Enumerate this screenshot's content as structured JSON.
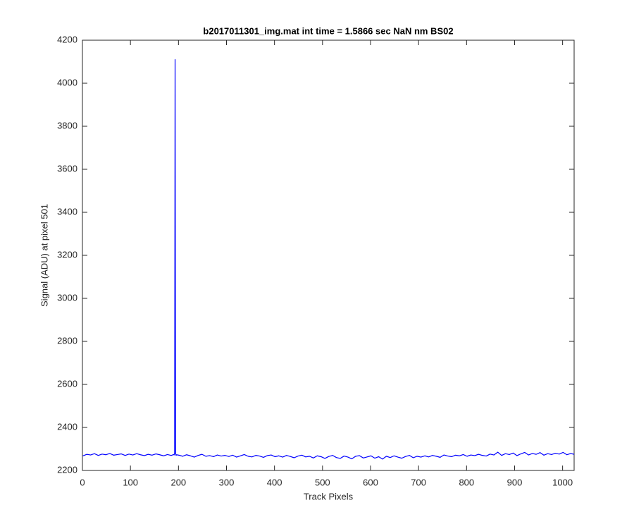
{
  "chart_data": {
    "type": "line",
    "title": "b2017011301_img.mat int time = 1.5866 sec  NaN nm BS02",
    "x_label": "Track Pixels",
    "y_label": "Signal (ADU) at pixel 501",
    "xlim": [
      0,
      1024
    ],
    "ylim": [
      2200,
      4200
    ],
    "xticks": [
      0,
      100,
      200,
      300,
      400,
      500,
      600,
      700,
      800,
      900,
      1000
    ],
    "yticks": [
      2200,
      2400,
      2600,
      2800,
      3000,
      3200,
      3400,
      3600,
      3800,
      4000,
      4200
    ],
    "grid": false,
    "x": [
      1,
      9,
      17,
      25,
      33,
      41,
      49,
      57,
      65,
      73,
      81,
      89,
      97,
      105,
      113,
      121,
      129,
      137,
      145,
      153,
      161,
      169,
      177,
      185,
      190,
      191,
      192,
      193,
      194,
      195,
      196,
      201,
      209,
      217,
      225,
      233,
      241,
      249,
      257,
      265,
      273,
      281,
      289,
      297,
      305,
      313,
      321,
      329,
      337,
      345,
      353,
      361,
      369,
      377,
      385,
      393,
      401,
      409,
      417,
      425,
      433,
      441,
      449,
      457,
      465,
      473,
      481,
      489,
      497,
      505,
      513,
      521,
      529,
      537,
      545,
      553,
      561,
      569,
      577,
      585,
      593,
      601,
      609,
      617,
      625,
      633,
      641,
      649,
      657,
      665,
      673,
      681,
      689,
      697,
      705,
      713,
      721,
      729,
      737,
      745,
      753,
      761,
      769,
      777,
      785,
      793,
      801,
      809,
      817,
      825,
      833,
      841,
      849,
      857,
      865,
      873,
      881,
      889,
      897,
      905,
      913,
      921,
      929,
      937,
      945,
      953,
      961,
      969,
      977,
      985,
      993,
      1001,
      1009,
      1017,
      1024
    ],
    "series": [
      {
        "color": "#0000ff",
        "values": [
          2268,
          2275,
          2272,
          2278,
          2270,
          2276,
          2273,
          2279,
          2271,
          2274,
          2277,
          2270,
          2276,
          2272,
          2278,
          2273,
          2269,
          2275,
          2271,
          2277,
          2273,
          2268,
          2274,
          2270,
          2274,
          2272,
          2280,
          4110,
          2280,
          2270,
          2273,
          2271,
          2266,
          2273,
          2268,
          2262,
          2270,
          2275,
          2266,
          2269,
          2264,
          2272,
          2267,
          2270,
          2265,
          2271,
          2262,
          2268,
          2274,
          2266,
          2263,
          2270,
          2267,
          2261,
          2269,
          2272,
          2264,
          2268,
          2262,
          2270,
          2265,
          2259,
          2267,
          2271,
          2263,
          2266,
          2258,
          2268,
          2264,
          2256,
          2265,
          2270,
          2260,
          2256,
          2267,
          2262,
          2254,
          2266,
          2269,
          2258,
          2263,
          2268,
          2257,
          2264,
          2253,
          2266,
          2260,
          2268,
          2262,
          2257,
          2265,
          2270,
          2259,
          2266,
          2262,
          2268,
          2263,
          2270,
          2266,
          2261,
          2272,
          2267,
          2264,
          2271,
          2268,
          2274,
          2266,
          2272,
          2269,
          2275,
          2270,
          2267,
          2276,
          2272,
          2285,
          2270,
          2278,
          2274,
          2281,
          2269,
          2277,
          2284,
          2272,
          2279,
          2275,
          2283,
          2271,
          2278,
          2274,
          2280,
          2276,
          2284,
          2273,
          2279,
          2275
        ]
      }
    ]
  }
}
